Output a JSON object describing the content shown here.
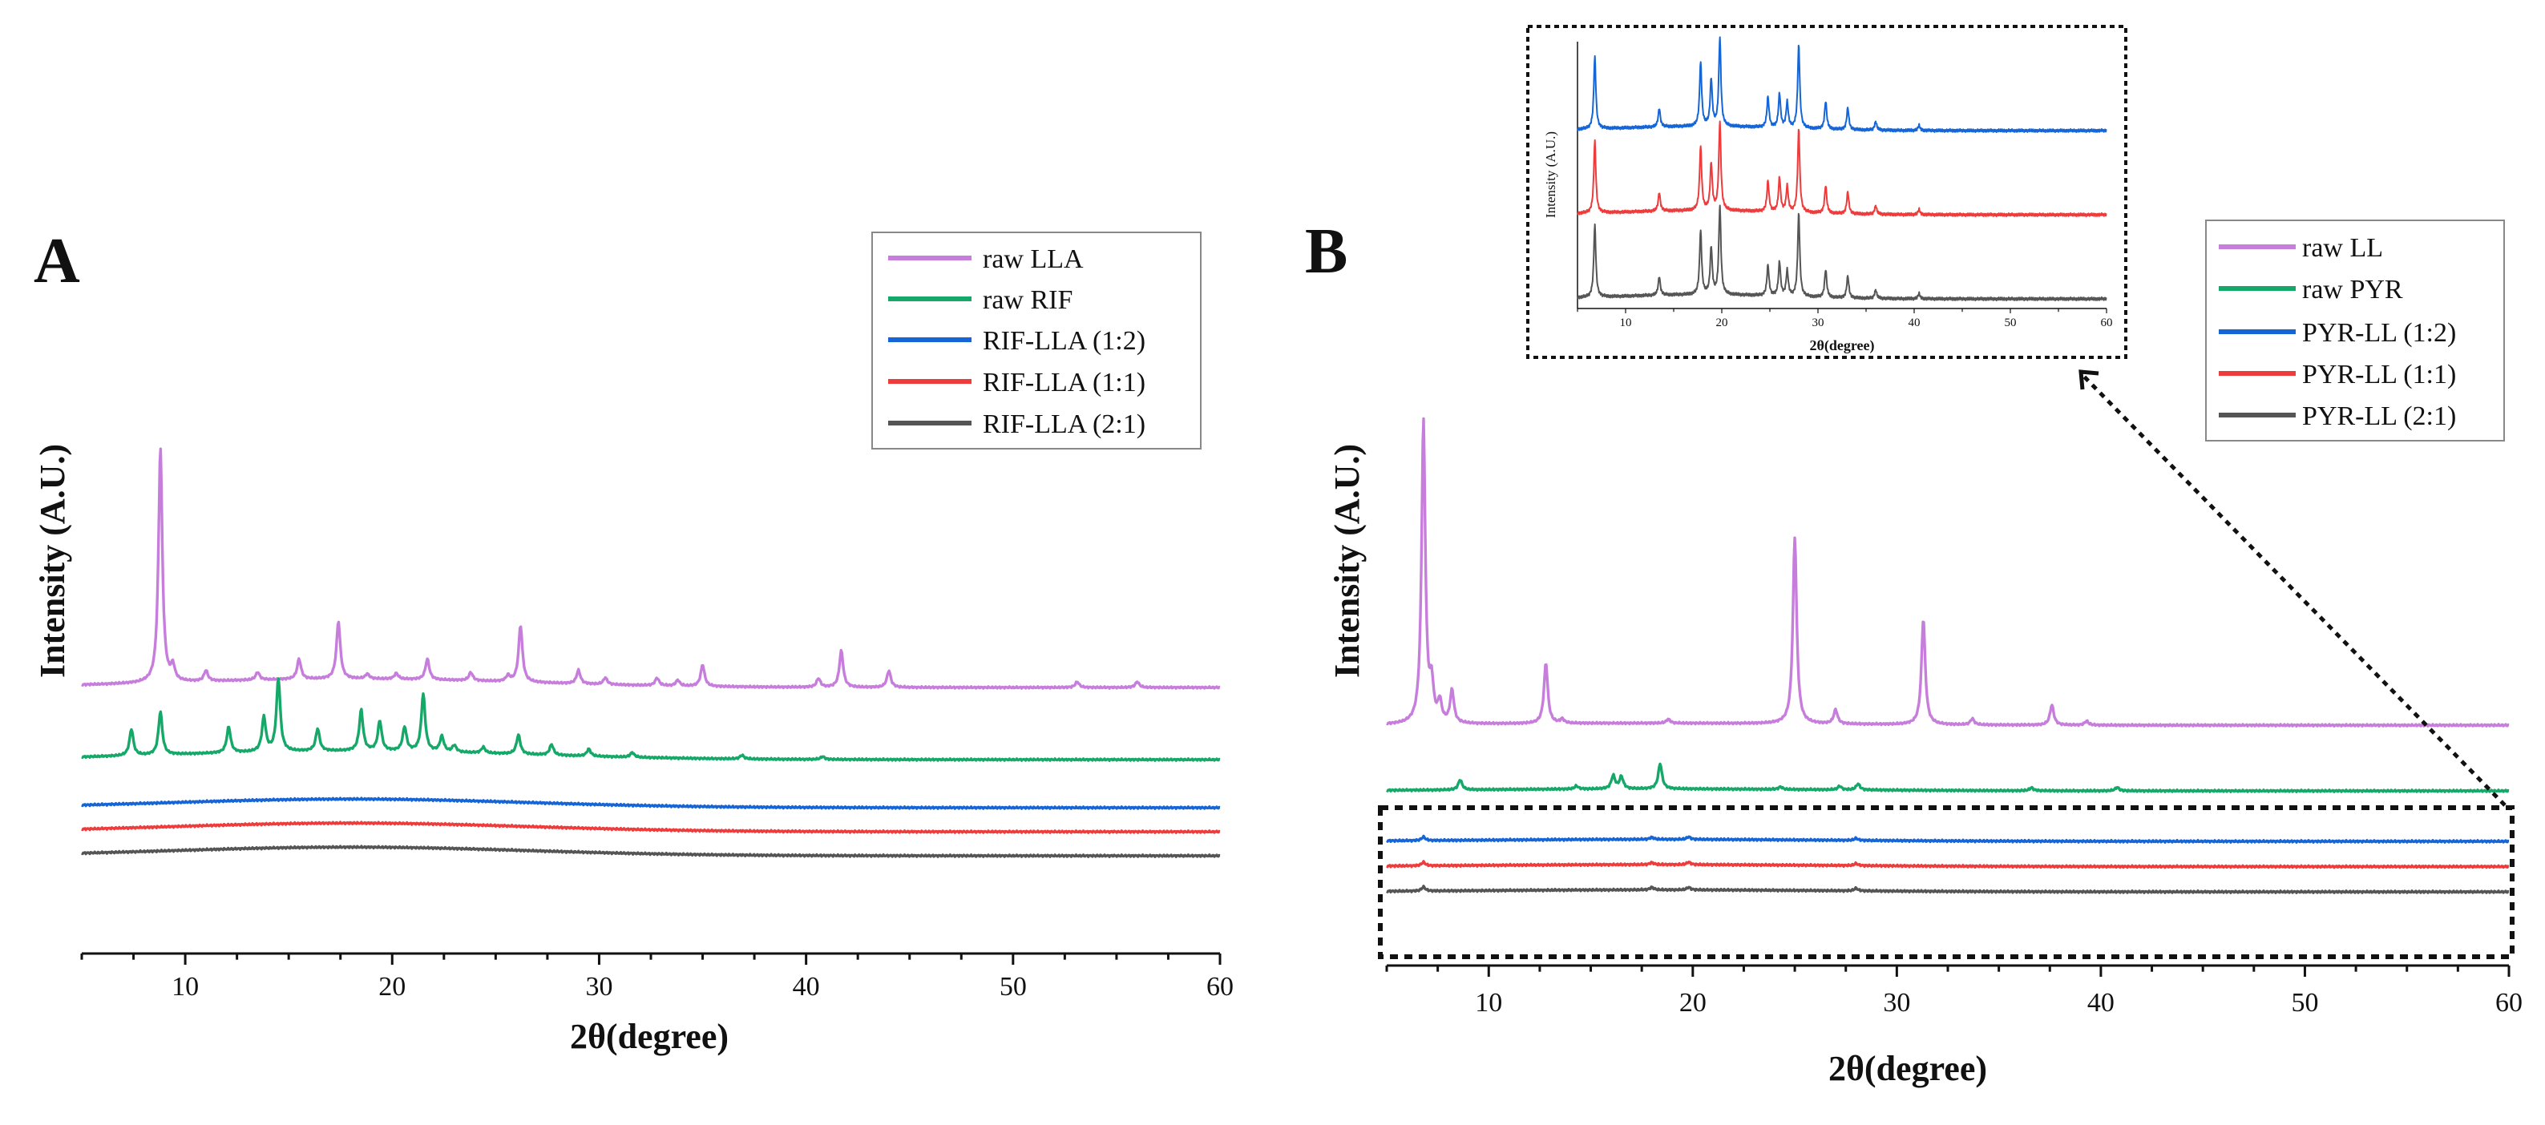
{
  "colors": {
    "purple": "#c77ddc",
    "green": "#16a868",
    "blue": "#1565d6",
    "red": "#ee3b3b",
    "gray": "#555555"
  },
  "chart_data": [
    {
      "type": "line",
      "panel": "A",
      "title": "",
      "xlabel": "2θ(degree)",
      "ylabel": "Intensity (A.U.)",
      "xlim": [
        5,
        60
      ],
      "xticks": [
        10,
        20,
        30,
        40,
        50,
        60
      ],
      "legend_position": "top-right",
      "series": [
        {
          "name": "raw LLA",
          "color_key": "purple",
          "baseline": 4.5,
          "peaks": [
            [
              8.8,
              4.9
            ],
            [
              9.4,
              0.3
            ],
            [
              11.0,
              0.22
            ],
            [
              13.5,
              0.16
            ],
            [
              15.5,
              0.42
            ],
            [
              17.4,
              1.2
            ],
            [
              18.8,
              0.1
            ],
            [
              20.2,
              0.12
            ],
            [
              21.7,
              0.43
            ],
            [
              23.8,
              0.17
            ],
            [
              25.6,
              0.12
            ],
            [
              26.2,
              1.18
            ],
            [
              29.0,
              0.28
            ],
            [
              30.3,
              0.14
            ],
            [
              32.8,
              0.16
            ],
            [
              33.8,
              0.12
            ],
            [
              35.0,
              0.45
            ],
            [
              40.6,
              0.18
            ],
            [
              41.7,
              0.76
            ],
            [
              44.0,
              0.35
            ],
            [
              53.1,
              0.12
            ],
            [
              56.0,
              0.12
            ]
          ]
        },
        {
          "name": "raw RIF",
          "color_key": "green",
          "baseline": 3.0,
          "peaks": [
            [
              7.4,
              0.55
            ],
            [
              8.8,
              0.9
            ],
            [
              12.1,
              0.54
            ],
            [
              13.8,
              0.72
            ],
            [
              14.5,
              1.52
            ],
            [
              16.4,
              0.46
            ],
            [
              18.5,
              0.85
            ],
            [
              19.4,
              0.62
            ],
            [
              20.6,
              0.5
            ],
            [
              21.5,
              1.2
            ],
            [
              22.4,
              0.32
            ],
            [
              23.0,
              0.14
            ],
            [
              24.4,
              0.12
            ],
            [
              26.1,
              0.4
            ],
            [
              27.7,
              0.22
            ],
            [
              29.5,
              0.15
            ],
            [
              31.6,
              0.1
            ],
            [
              36.9,
              0.08
            ],
            [
              40.8,
              0.06
            ]
          ]
        },
        {
          "name": "RIF-LLA (1:2)",
          "color_key": "blue",
          "baseline": 2.0,
          "peaks": []
        },
        {
          "name": "RIF-LLA (1:1)",
          "color_key": "red",
          "baseline": 1.5,
          "peaks": []
        },
        {
          "name": "RIF-LLA (2:1)",
          "color_key": "gray",
          "baseline": 1.0,
          "peaks": []
        }
      ]
    },
    {
      "type": "line",
      "panel": "B",
      "title": "",
      "xlabel": "2θ(degree)",
      "ylabel": "Intensity (A.U.)",
      "xlim": [
        5,
        60
      ],
      "xticks": [
        10,
        20,
        30,
        40,
        50,
        60
      ],
      "legend_position": "top-right",
      "series": [
        {
          "name": "raw LL",
          "color_key": "purple",
          "baseline": 4.3,
          "peaks": [
            [
              6.8,
              6.0
            ],
            [
              7.2,
              0.7
            ],
            [
              7.6,
              0.4
            ],
            [
              8.2,
              0.65
            ],
            [
              12.8,
              1.2
            ],
            [
              13.6,
              0.08
            ],
            [
              18.8,
              0.08
            ],
            [
              25.0,
              3.7
            ],
            [
              27.0,
              0.28
            ],
            [
              31.3,
              2.1
            ],
            [
              33.7,
              0.12
            ],
            [
              37.6,
              0.4
            ],
            [
              39.3,
              0.08
            ]
          ]
        },
        {
          "name": "raw PYR",
          "color_key": "green",
          "baseline": 3.0,
          "peaks": [
            [
              8.6,
              0.2
            ],
            [
              14.3,
              0.06
            ],
            [
              16.1,
              0.26
            ],
            [
              16.5,
              0.24
            ],
            [
              18.4,
              0.5
            ],
            [
              24.3,
              0.05
            ],
            [
              27.2,
              0.07
            ],
            [
              28.1,
              0.12
            ],
            [
              36.6,
              0.06
            ],
            [
              40.8,
              0.07
            ]
          ]
        },
        {
          "name": "PYR-LL (1:2)",
          "color_key": "blue",
          "baseline": 2.0,
          "peaks": [
            [
              6.8,
              0.07
            ],
            [
              18.0,
              0.04
            ],
            [
              19.8,
              0.05
            ],
            [
              28.0,
              0.04
            ]
          ]
        },
        {
          "name": "PYR-LL (1:1)",
          "color_key": "red",
          "baseline": 1.5,
          "peaks": [
            [
              6.8,
              0.07
            ],
            [
              18.0,
              0.04
            ],
            [
              19.8,
              0.05
            ],
            [
              28.0,
              0.04
            ]
          ]
        },
        {
          "name": "PYR-LL (2:1)",
          "color_key": "gray",
          "baseline": 1.0,
          "peaks": [
            [
              6.8,
              0.08
            ],
            [
              18.0,
              0.05
            ],
            [
              19.8,
              0.05
            ],
            [
              28.0,
              0.05
            ]
          ]
        }
      ],
      "inset": {
        "xlabel": "2θ(degree)",
        "ylabel": "Intensity (A.U.)",
        "xlim": [
          5,
          60
        ],
        "xticks": [
          10,
          20,
          30,
          40,
          50,
          60
        ],
        "series": [
          {
            "name": "PYR-LL (1:2)",
            "color_key": "blue",
            "baseline": 3.0,
            "peaks": [
              [
                6.8,
                0.85
              ],
              [
                13.5,
                0.22
              ],
              [
                17.8,
                0.75
              ],
              [
                18.9,
                0.55
              ],
              [
                19.8,
                1.05
              ],
              [
                24.8,
                0.36
              ],
              [
                26.0,
                0.4
              ],
              [
                26.8,
                0.3
              ],
              [
                28.0,
                0.98
              ],
              [
                30.8,
                0.33
              ],
              [
                33.1,
                0.26
              ],
              [
                36.0,
                0.1
              ],
              [
                40.5,
                0.06
              ]
            ]
          },
          {
            "name": "PYR-LL (1:1)",
            "color_key": "red",
            "baseline": 2.0,
            "peaks": [
              [
                6.8,
                0.85
              ],
              [
                13.5,
                0.22
              ],
              [
                17.8,
                0.75
              ],
              [
                18.9,
                0.55
              ],
              [
                19.8,
                1.05
              ],
              [
                24.8,
                0.36
              ],
              [
                26.0,
                0.4
              ],
              [
                26.8,
                0.3
              ],
              [
                28.0,
                0.98
              ],
              [
                30.8,
                0.33
              ],
              [
                33.1,
                0.26
              ],
              [
                36.0,
                0.1
              ],
              [
                40.5,
                0.06
              ]
            ]
          },
          {
            "name": "PYR-LL (2:1)",
            "color_key": "gray",
            "baseline": 1.0,
            "peaks": [
              [
                6.8,
                0.85
              ],
              [
                13.5,
                0.22
              ],
              [
                17.8,
                0.75
              ],
              [
                18.9,
                0.55
              ],
              [
                19.8,
                1.05
              ],
              [
                24.8,
                0.36
              ],
              [
                26.0,
                0.4
              ],
              [
                26.8,
                0.3
              ],
              [
                28.0,
                0.98
              ],
              [
                30.8,
                0.33
              ],
              [
                33.1,
                0.26
              ],
              [
                36.0,
                0.1
              ],
              [
                40.5,
                0.06
              ]
            ]
          }
        ]
      }
    }
  ]
}
